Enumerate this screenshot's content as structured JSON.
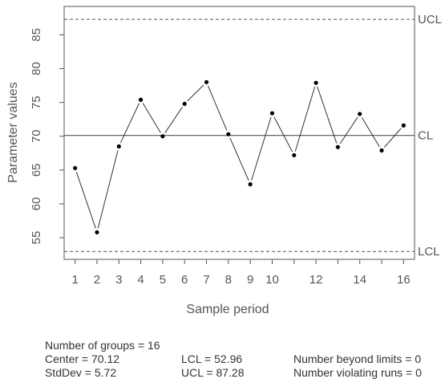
{
  "chart_data": {
    "type": "line",
    "xlabel": "Sample period",
    "ylabel": "Parameter values",
    "x": [
      1,
      2,
      3,
      4,
      5,
      6,
      7,
      8,
      9,
      10,
      11,
      12,
      13,
      14,
      15,
      16
    ],
    "x_tick_labels": [
      "1",
      "2",
      "3",
      "4",
      "5",
      "6",
      "7",
      "8",
      "9",
      "10",
      "12",
      "14",
      "16"
    ],
    "y_ticks": [
      55,
      60,
      65,
      70,
      75,
      80,
      85
    ],
    "series": [
      {
        "values": [
          65.3,
          55.8,
          68.5,
          75.4,
          70.0,
          74.8,
          78.0,
          70.3,
          62.9,
          73.4,
          67.2,
          77.9,
          68.4,
          73.3,
          67.9,
          71.6
        ]
      }
    ],
    "center_line": {
      "value": 70.12,
      "label": "CL"
    },
    "ucl_line": {
      "value": 87.28,
      "label": "UCL"
    },
    "lcl_line": {
      "value": 52.96,
      "label": "LCL"
    },
    "xlim": [
      0.5,
      16.5
    ],
    "ylim": [
      51.8,
      89.2
    ],
    "grid": false,
    "legend": "none",
    "colors": {
      "points": "#000000",
      "line": "#333333",
      "axis": "#555555",
      "limits": "#555555"
    }
  },
  "stats": {
    "groups": "Number of groups = 16",
    "center": "Center = 70.12",
    "stddev": "StdDev = 5.72",
    "lcl": "LCL = 52.96",
    "ucl": "UCL = 87.28",
    "beyond": "Number beyond limits = 0",
    "violating": "Number violating runs = 0"
  }
}
